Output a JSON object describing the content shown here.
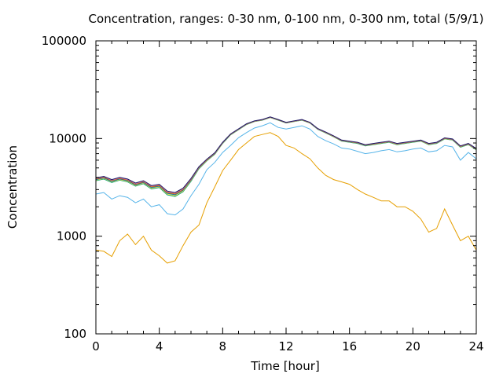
{
  "chart_data": {
    "type": "line",
    "title": "Concentration, ranges: 0-30 nm, 0-100 nm, 0-300 nm, total (5/9/1)",
    "xlabel": "Time [hour]",
    "ylabel": "Concentration",
    "xlim": [
      0,
      24
    ],
    "ylim": [
      100,
      100000
    ],
    "yscale": "log",
    "grid": false,
    "legend": "none",
    "xticks": [
      0,
      4,
      8,
      12,
      16,
      20,
      24
    ],
    "xtick_labels": [
      "0",
      "4",
      "8",
      "12",
      "16",
      "20",
      "24"
    ],
    "yticks": [
      100,
      1000,
      10000,
      100000
    ],
    "ytick_labels": [
      "100",
      "1000",
      "10000",
      "100000"
    ],
    "series": [
      {
        "color": "#e69f00",
        "x": [
          0,
          0.5,
          1,
          1.5,
          2,
          2.5,
          3,
          3.5,
          4,
          4.5,
          5,
          5.5,
          6,
          6.5,
          7,
          7.5,
          8,
          8.5,
          9,
          9.5,
          10,
          10.5,
          11,
          11.5,
          12,
          12.5,
          13,
          13.5,
          14,
          14.5,
          15,
          15.5,
          16,
          16.5,
          17,
          17.5,
          18,
          18.5,
          19,
          19.5,
          20,
          20.5,
          21,
          21.5,
          22,
          22.5,
          23,
          23.5,
          24
        ],
        "y": [
          720,
          700,
          620,
          900,
          1050,
          820,
          1000,
          720,
          630,
          530,
          560,
          800,
          1100,
          1300,
          2200,
          3200,
          4700,
          6000,
          7700,
          9000,
          10500,
          11000,
          11500,
          10500,
          8500,
          8000,
          7000,
          6200,
          5000,
          4200,
          3800,
          3600,
          3400,
          3000,
          2700,
          2500,
          2300,
          2300,
          2000,
          2000,
          1800,
          1500,
          1100,
          1200,
          1900,
          1300,
          900,
          1000,
          720
        ]
      },
      {
        "color": "#56b4e9",
        "x": [
          0,
          0.5,
          1,
          1.5,
          2,
          2.5,
          3,
          3.5,
          4,
          4.5,
          5,
          5.5,
          6,
          6.5,
          7,
          7.5,
          8,
          8.5,
          9,
          9.5,
          10,
          10.5,
          11,
          11.5,
          12,
          12.5,
          13,
          13.5,
          14,
          14.5,
          15,
          15.5,
          16,
          16.5,
          17,
          17.5,
          18,
          18.5,
          19,
          19.5,
          20,
          20.5,
          21,
          21.5,
          22,
          22.5,
          23,
          23.5,
          24
        ],
        "y": [
          2700,
          2800,
          2400,
          2600,
          2500,
          2200,
          2400,
          2000,
          2100,
          1700,
          1650,
          1900,
          2600,
          3400,
          4800,
          5700,
          7200,
          8500,
          10200,
          11500,
          12800,
          13500,
          14500,
          13000,
          12500,
          13000,
          13500,
          12500,
          10500,
          9500,
          8800,
          8000,
          7800,
          7400,
          7000,
          7200,
          7500,
          7700,
          7300,
          7500,
          7800,
          8000,
          7300,
          7500,
          8500,
          8200,
          6000,
          7200,
          6200
        ]
      },
      {
        "color": "#009e73",
        "x": [
          0,
          0.5,
          1,
          1.5,
          2,
          2.5,
          3,
          3.5,
          4,
          4.5,
          5,
          5.5,
          6,
          6.5,
          7,
          7.5,
          8,
          8.5,
          9,
          9.5,
          10,
          10.5,
          11,
          11.5,
          12,
          12.5,
          13,
          13.5,
          14,
          14.5,
          15,
          15.5,
          16,
          16.5,
          17,
          17.5,
          18,
          18.5,
          19,
          19.5,
          20,
          20.5,
          21,
          21.5,
          22,
          22.5,
          23,
          23.5,
          24
        ],
        "y": [
          3700,
          3850,
          3550,
          3750,
          3600,
          3250,
          3450,
          3050,
          3150,
          2650,
          2550,
          2850,
          3650,
          4900,
          5900,
          6900,
          8900,
          10900,
          12300,
          13900,
          14900,
          15400,
          16400,
          15400,
          14400,
          14900,
          15400,
          14400,
          12400,
          11400,
          10400,
          9400,
          9150,
          8900,
          8400,
          8650,
          8900,
          9150,
          8650,
          8900,
          9150,
          9400,
          8650,
          8900,
          9900,
          9650,
          8150,
          8650,
          7650
        ]
      },
      {
        "color": "#f0e442",
        "x": [
          0,
          0.5,
          1,
          1.5,
          2,
          2.5,
          3,
          3.5,
          4,
          4.5,
          5,
          5.5,
          6,
          6.5,
          7,
          7.5,
          8,
          8.5,
          9,
          9.5,
          10,
          10.5,
          11,
          11.5,
          12,
          12.5,
          13,
          13.5,
          14,
          14.5,
          15,
          15.5,
          16,
          16.5,
          17,
          17.5,
          18,
          18.5,
          19,
          19.5,
          20,
          20.5,
          21,
          21.5,
          22,
          22.5,
          23,
          23.5,
          24
        ],
        "y": [
          3750,
          3900,
          3600,
          3800,
          3650,
          3300,
          3500,
          3100,
          3200,
          2700,
          2600,
          2900,
          3700,
          4950,
          5950,
          6950,
          8950,
          10950,
          12350,
          13950,
          14950,
          15450,
          16450,
          15450,
          14450,
          14950,
          15450,
          14450,
          12450,
          11450,
          10450,
          9450,
          9200,
          8950,
          8450,
          8700,
          8950,
          9200,
          8700,
          8950,
          9200,
          9450,
          8700,
          8950,
          9950,
          9700,
          8200,
          8700,
          7700
        ]
      },
      {
        "color": "#0072b2",
        "x": [
          0,
          0.5,
          1,
          1.5,
          2,
          2.5,
          3,
          3.5,
          4,
          4.5,
          5,
          5.5,
          6,
          6.5,
          7,
          7.5,
          8,
          8.5,
          9,
          9.5,
          10,
          10.5,
          11,
          11.5,
          12,
          12.5,
          13,
          13.5,
          14,
          14.5,
          15,
          15.5,
          16,
          16.5,
          17,
          17.5,
          18,
          18.5,
          19,
          19.5,
          20,
          20.5,
          21,
          21.5,
          22,
          22.5,
          23,
          23.5,
          24
        ],
        "y": [
          3800,
          3950,
          3650,
          3850,
          3700,
          3350,
          3550,
          3150,
          3250,
          2750,
          2650,
          2950,
          3750,
          5000,
          6000,
          7000,
          9000,
          11000,
          12400,
          14000,
          15000,
          15500,
          16500,
          15500,
          14500,
          15000,
          15500,
          14500,
          12500,
          11500,
          10500,
          9500,
          9250,
          9000,
          8500,
          8750,
          9000,
          9250,
          8750,
          9000,
          9250,
          9500,
          8750,
          9000,
          10000,
          9750,
          8250,
          8750,
          7750
        ]
      },
      {
        "color": "#d55e00",
        "x": [
          0,
          0.5,
          1,
          1.5,
          2,
          2.5,
          3,
          3.5,
          4,
          4.5,
          5,
          5.5,
          6,
          6.5,
          7,
          7.5,
          8,
          8.5,
          9,
          9.5,
          10,
          10.5,
          11,
          11.5,
          12,
          12.5,
          13,
          13.5,
          14,
          14.5,
          15,
          15.5,
          16,
          16.5,
          17,
          17.5,
          18,
          18.5,
          19,
          19.5,
          20,
          20.5,
          21,
          21.5,
          22,
          22.5,
          23,
          23.5,
          24
        ],
        "y": [
          3850,
          4000,
          3700,
          3900,
          3750,
          3400,
          3600,
          3200,
          3300,
          2800,
          2700,
          3000,
          3800,
          5050,
          6050,
          7050,
          9050,
          11050,
          12450,
          14050,
          15050,
          15550,
          16550,
          15550,
          14550,
          15050,
          15550,
          14550,
          12550,
          11550,
          10550,
          9550,
          9300,
          9050,
          8550,
          8800,
          9050,
          9300,
          8800,
          9050,
          9300,
          9550,
          8800,
          9050,
          10050,
          9800,
          8300,
          8800,
          7800
        ]
      },
      {
        "color": "#cc79a7",
        "x": [
          0,
          0.5,
          1,
          1.5,
          2,
          2.5,
          3,
          3.5,
          4,
          4.5,
          5,
          5.5,
          6,
          6.5,
          7,
          7.5,
          8,
          8.5,
          9,
          9.5,
          10,
          10.5,
          11,
          11.5,
          12,
          12.5,
          13,
          13.5,
          14,
          14.5,
          15,
          15.5,
          16,
          16.5,
          17,
          17.5,
          18,
          18.5,
          19,
          19.5,
          20,
          20.5,
          21,
          21.5,
          22,
          22.5,
          23,
          23.5,
          24
        ],
        "y": [
          3900,
          4050,
          3750,
          3950,
          3800,
          3450,
          3650,
          3250,
          3350,
          2850,
          2750,
          3050,
          3850,
          5100,
          6100,
          7100,
          9100,
          11100,
          12500,
          14100,
          15100,
          15600,
          16600,
          15600,
          14600,
          15100,
          15600,
          14600,
          12600,
          11600,
          10600,
          9600,
          9350,
          9100,
          8600,
          8850,
          9100,
          9350,
          8850,
          9100,
          9350,
          9600,
          8850,
          9100,
          10100,
          9850,
          8350,
          8850,
          7850
        ]
      },
      {
        "color": "#1a1a66",
        "x": [
          0,
          0.5,
          1,
          1.5,
          2,
          2.5,
          3,
          3.5,
          4,
          4.5,
          5,
          5.5,
          6,
          6.5,
          7,
          7.5,
          8,
          8.5,
          9,
          9.5,
          10,
          10.5,
          11,
          11.5,
          12,
          12.5,
          13,
          13.5,
          14,
          14.5,
          15,
          15.5,
          16,
          16.5,
          17,
          17.5,
          18,
          18.5,
          19,
          19.5,
          20,
          20.5,
          21,
          21.5,
          22,
          22.5,
          23,
          23.5,
          24
        ],
        "y": [
          3950,
          4100,
          3800,
          4000,
          3850,
          3500,
          3700,
          3300,
          3400,
          2900,
          2800,
          3100,
          3900,
          5150,
          6150,
          7150,
          9150,
          11150,
          12550,
          14150,
          15150,
          15650,
          16650,
          15650,
          14650,
          15150,
          15650,
          14650,
          12650,
          11650,
          10650,
          9650,
          9400,
          9150,
          8650,
          8900,
          9150,
          9400,
          8900,
          9150,
          9400,
          9650,
          8900,
          9150,
          10150,
          9900,
          8400,
          8900,
          7900
        ]
      }
    ]
  }
}
